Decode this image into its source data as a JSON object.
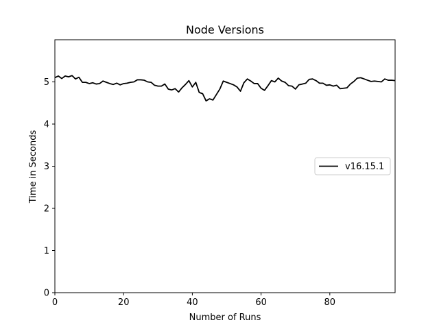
{
  "chart_data": {
    "type": "line",
    "title": "Node Versions",
    "xlabel": "Number of Runs",
    "ylabel": "Time in Seconds",
    "xlim": [
      0,
      99
    ],
    "ylim": [
      0,
      6
    ],
    "xticks": [
      0,
      20,
      40,
      60,
      80
    ],
    "yticks": [
      0,
      1,
      2,
      3,
      4,
      5
    ],
    "grid": false,
    "legend_position": "center-right",
    "series": [
      {
        "name": "v16.15.1",
        "color": "#000000",
        "x": [
          0,
          1,
          2,
          3,
          4,
          5,
          6,
          7,
          8,
          9,
          10,
          11,
          12,
          13,
          14,
          15,
          16,
          17,
          18,
          19,
          20,
          21,
          22,
          23,
          24,
          25,
          26,
          27,
          28,
          29,
          30,
          31,
          32,
          33,
          34,
          35,
          36,
          37,
          38,
          39,
          40,
          41,
          42,
          43,
          44,
          45,
          46,
          47,
          48,
          49,
          50,
          51,
          52,
          53,
          54,
          55,
          56,
          57,
          58,
          59,
          60,
          61,
          62,
          63,
          64,
          65,
          66,
          67,
          68,
          69,
          70,
          71,
          72,
          73,
          74,
          75,
          76,
          77,
          78,
          79,
          80,
          81,
          82,
          83,
          84,
          85,
          86,
          87,
          88,
          89,
          90,
          91,
          92,
          93,
          94,
          95,
          96,
          97,
          98,
          99
        ],
        "values": [
          5.1,
          5.14,
          5.08,
          5.14,
          5.12,
          5.15,
          5.07,
          5.11,
          4.99,
          4.99,
          4.96,
          4.98,
          4.95,
          4.96,
          5.02,
          4.99,
          4.96,
          4.94,
          4.97,
          4.93,
          4.96,
          4.97,
          4.99,
          5.0,
          5.05,
          5.05,
          5.04,
          5.0,
          4.99,
          4.92,
          4.9,
          4.9,
          4.95,
          4.83,
          4.81,
          4.84,
          4.76,
          4.86,
          4.94,
          5.03,
          4.88,
          4.99,
          4.75,
          4.72,
          4.55,
          4.6,
          4.57,
          4.7,
          4.83,
          5.02,
          4.99,
          4.96,
          4.93,
          4.88,
          4.78,
          4.98,
          5.07,
          5.02,
          4.96,
          4.96,
          4.85,
          4.8,
          4.91,
          5.03,
          5.0,
          5.09,
          5.02,
          4.99,
          4.91,
          4.9,
          4.83,
          4.93,
          4.95,
          4.97,
          5.06,
          5.07,
          5.03,
          4.97,
          4.97,
          4.92,
          4.93,
          4.9,
          4.92,
          4.84,
          4.85,
          4.86,
          4.95,
          5.01,
          5.09,
          5.1,
          5.07,
          5.04,
          5.01,
          5.02,
          5.01,
          5.0,
          5.07,
          5.04,
          5.04,
          5.03
        ]
      }
    ]
  }
}
